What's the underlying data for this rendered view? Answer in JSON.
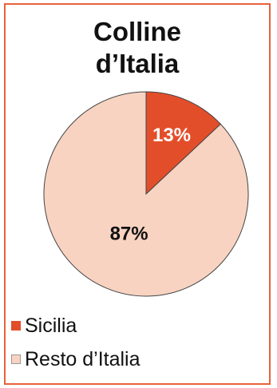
{
  "chart_data": {
    "type": "pie",
    "title_lines": [
      "Colline",
      "d’Italia"
    ],
    "slices": [
      {
        "label": "Sicilia",
        "value": 13,
        "data_label": "13%",
        "color": "#e34e2a",
        "label_color": "#ffffff"
      },
      {
        "label": "Resto d’Italia",
        "value": 87,
        "data_label": "87%",
        "color": "#f8d3c1",
        "label_color": "#111111"
      }
    ],
    "legend_position": "bottom-left",
    "border_color": "#e8623a"
  }
}
